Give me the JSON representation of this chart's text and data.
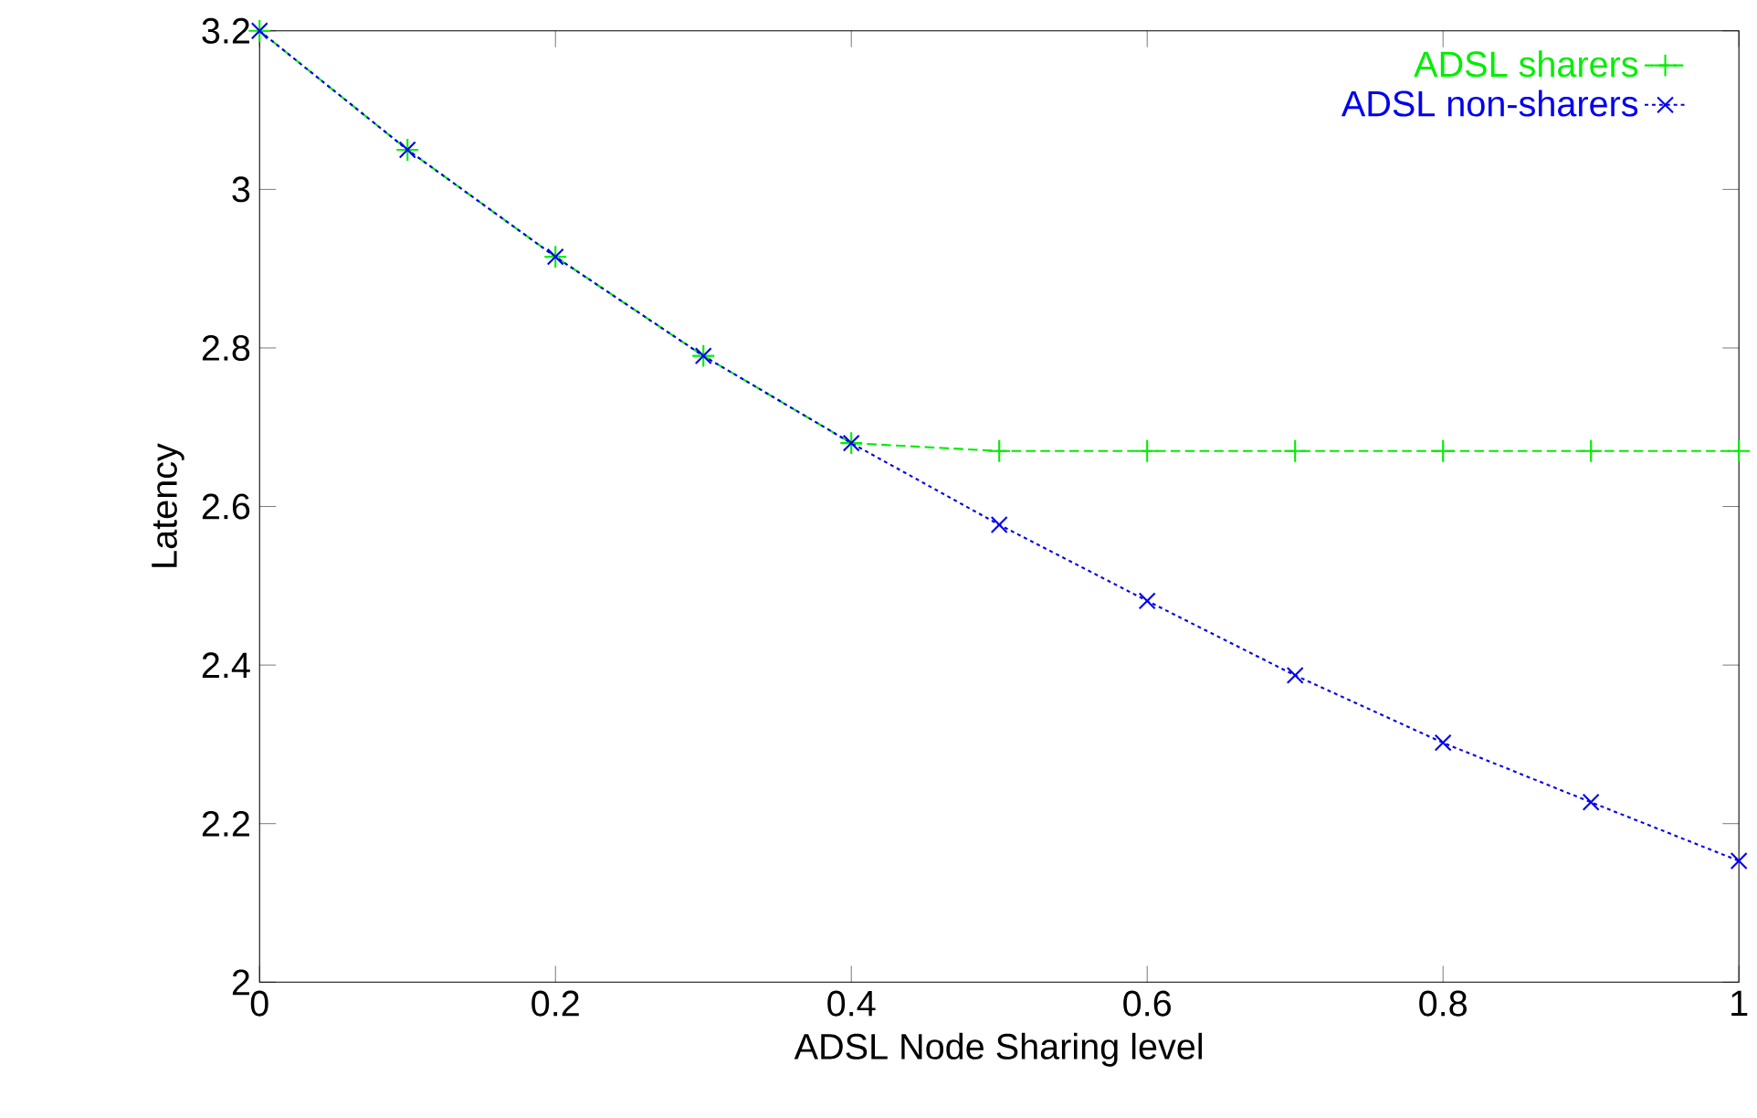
{
  "chart_data": {
    "type": "line",
    "xlabel": "ADSL Node Sharing level",
    "ylabel": "Latency",
    "x": [
      0,
      0.1,
      0.2,
      0.3,
      0.4,
      0.5,
      0.6,
      0.7,
      0.8,
      0.9,
      1
    ],
    "series": [
      {
        "name": "ADSL sharers",
        "color": "#00ee00",
        "marker": "plus",
        "line_style": "dashed",
        "values": [
          3.2,
          3.05,
          2.915,
          2.79,
          2.68,
          2.67,
          2.67,
          2.67,
          2.67,
          2.67,
          2.67
        ]
      },
      {
        "name": "ADSL non-sharers",
        "color": "#0000ee",
        "marker": "cross",
        "line_style": "dotted",
        "values": [
          3.2,
          3.05,
          2.915,
          2.79,
          2.68,
          2.577,
          2.481,
          2.387,
          2.302,
          2.227,
          2.153
        ]
      }
    ],
    "xlim": [
      0,
      1
    ],
    "ylim": [
      2,
      3.2
    ],
    "xticks": [
      0,
      0.2,
      0.4,
      0.6,
      0.8,
      1
    ],
    "yticks": [
      2,
      2.2,
      2.4,
      2.6,
      2.8,
      3,
      3.2
    ],
    "legend": "top right",
    "grid": false
  }
}
